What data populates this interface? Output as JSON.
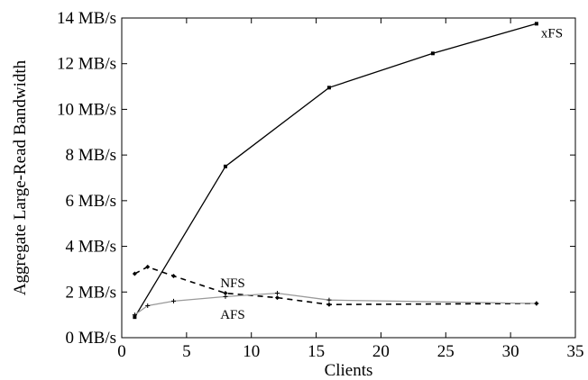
{
  "chart_data": {
    "type": "line",
    "xlabel": "Clients",
    "ylabel": "Aggregate Large-Read Bandwidth",
    "xlim": [
      0,
      35
    ],
    "ylim": [
      0,
      14
    ],
    "xticks": [
      0,
      5,
      10,
      15,
      20,
      25,
      30,
      35
    ],
    "xtick_labels": [
      "0",
      "5",
      "10",
      "15",
      "20",
      "25",
      "30",
      "35"
    ],
    "yticks": [
      0,
      2,
      4,
      6,
      8,
      10,
      12,
      14
    ],
    "ytick_labels": [
      "0 MB/s",
      "2 MB/s",
      "4 MB/s",
      "6 MB/s",
      "8 MB/s",
      "10 MB/s",
      "12 MB/s",
      "14 MB/s"
    ],
    "grid": false,
    "legend": "none",
    "series": [
      {
        "name": "xFS",
        "color": "#000000",
        "style": "solid",
        "x": [
          1,
          8,
          16,
          24,
          32
        ],
        "y": [
          0.9,
          7.5,
          10.95,
          12.45,
          13.75
        ]
      },
      {
        "name": "NFS",
        "color": "#000000",
        "style": "dashed",
        "x": [
          1,
          2,
          4,
          8,
          12,
          16,
          32
        ],
        "y": [
          2.8,
          3.1,
          2.7,
          1.95,
          1.75,
          1.45,
          1.5
        ]
      },
      {
        "name": "AFS",
        "color": "#9a9a9a",
        "style": "solid",
        "x": [
          1,
          2,
          4,
          8,
          12,
          16,
          32
        ],
        "y": [
          1.0,
          1.4,
          1.6,
          1.8,
          1.95,
          1.65,
          1.5
        ]
      }
    ]
  }
}
